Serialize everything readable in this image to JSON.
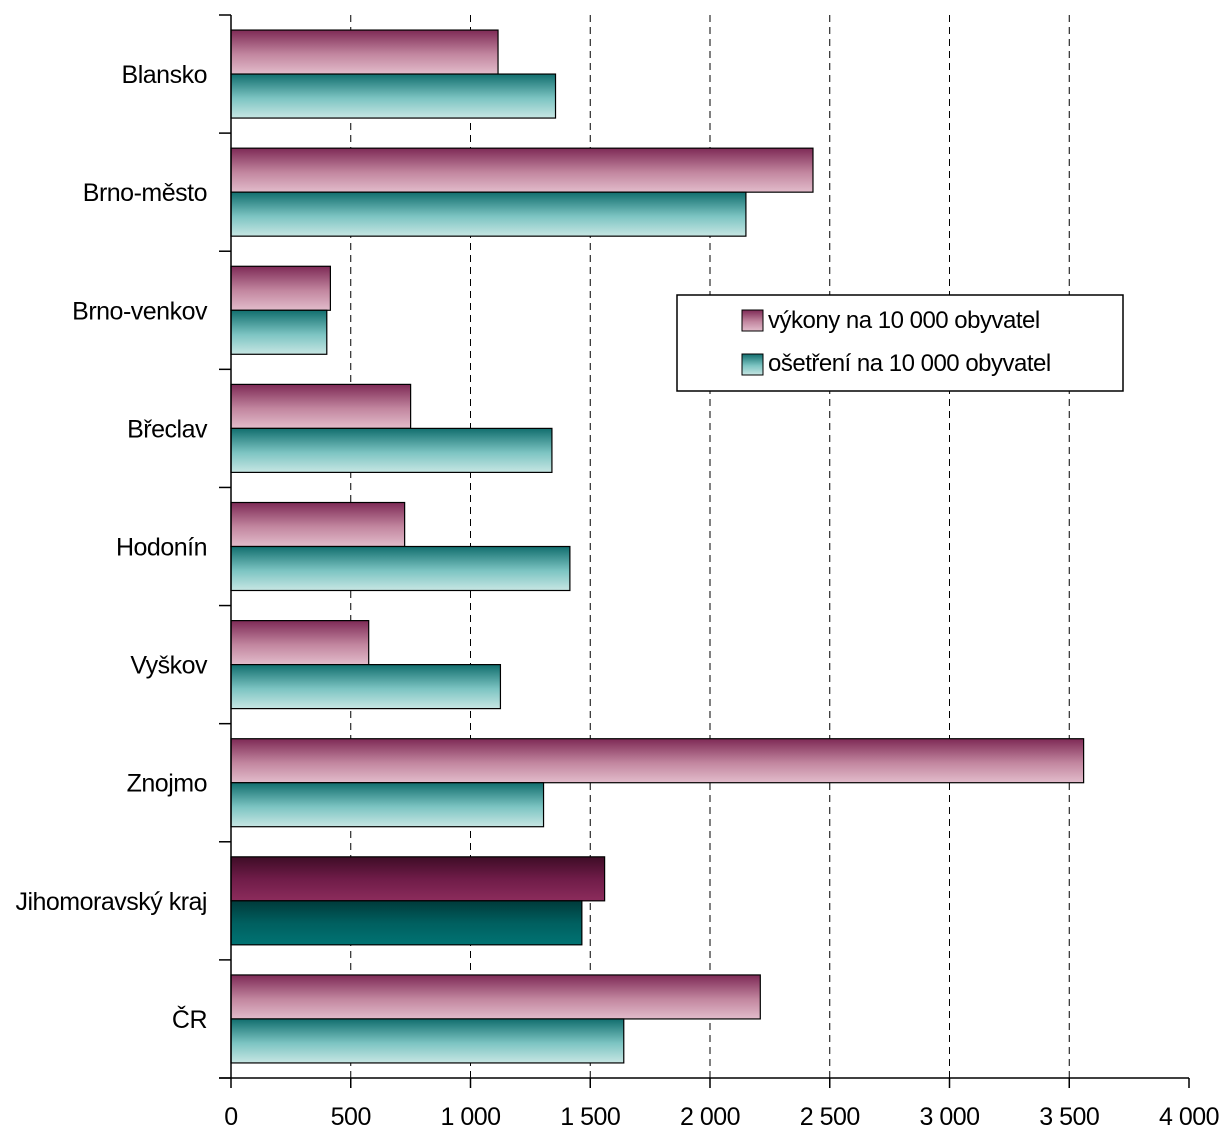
{
  "chart_data": {
    "type": "bar",
    "orientation": "horizontal",
    "categories": [
      "Blansko",
      "Brno-město",
      "Brno-venkov",
      "Břeclav",
      "Hodonín",
      "Vyškov",
      "Znojmo",
      "Jihomoravský kraj",
      "ČR"
    ],
    "highlight_category": "Jihomoravský kraj",
    "series": [
      {
        "name": "výkony na 10 000 obyvatel",
        "values": [
          1115,
          2430,
          415,
          750,
          725,
          575,
          3560,
          1560,
          2210
        ],
        "color": "#b06a8e",
        "highlight_color": "#6a1a44"
      },
      {
        "name": "ošetření na 10 000 obyvatel",
        "values": [
          1355,
          2150,
          400,
          1340,
          1415,
          1125,
          1305,
          1465,
          1640
        ],
        "color": "#5fb3b3",
        "highlight_color": "#006b6b"
      }
    ],
    "xlim": [
      0,
      4000
    ],
    "xticks": [
      0,
      500,
      1000,
      1500,
      2000,
      2500,
      3000,
      3500,
      4000
    ],
    "xtick_labels": [
      "0",
      "500",
      "1 000",
      "1 500",
      "2 000",
      "2 500",
      "3 000",
      "3 500",
      "4 000"
    ],
    "grid": "vertical dashed",
    "legend_position": "right, upper-middle"
  }
}
